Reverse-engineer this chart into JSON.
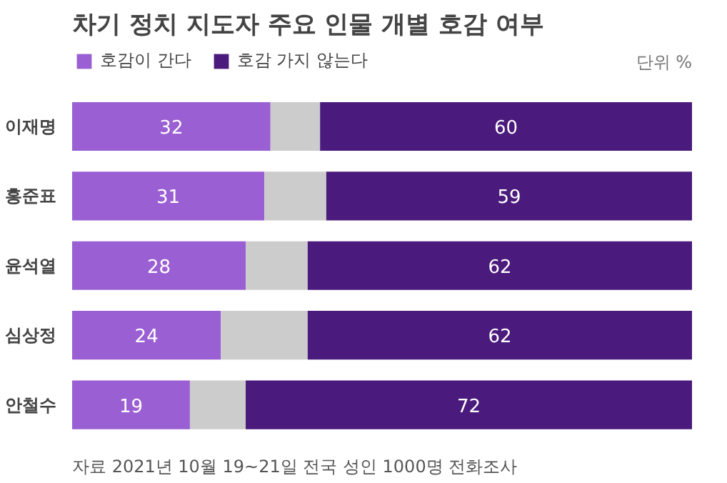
{
  "chart_data": {
    "type": "bar",
    "orientation": "horizontal",
    "stacked": true,
    "title": "차기 정치 지도자 주요 인물 개별 호감 여부",
    "categories": [
      "이재명",
      "홍준표",
      "윤석열",
      "심상정",
      "안철수"
    ],
    "series": [
      {
        "name": "호감이 간다",
        "color": "#9a5fd3",
        "values": [
          32,
          31,
          28,
          24,
          19
        ],
        "value_labels": [
          "32",
          "31",
          "28",
          "24",
          "19"
        ]
      },
      {
        "color": "#cccccc",
        "values": [
          8,
          10,
          10,
          14,
          9
        ]
      },
      {
        "name": "호감 가지 않는다",
        "color": "#4a1a7c",
        "values": [
          60,
          59,
          62,
          62,
          72
        ],
        "value_labels": [
          "60",
          "59",
          "62",
          "62",
          "72"
        ]
      }
    ],
    "xlim": [
      0,
      100
    ],
    "tick_labels": "y",
    "grid": false,
    "legend": "top left",
    "annotations": [
      "단위 %",
      "자료  2021년 10월 19~21일 전국 성인 1000명 전화조사"
    ]
  }
}
